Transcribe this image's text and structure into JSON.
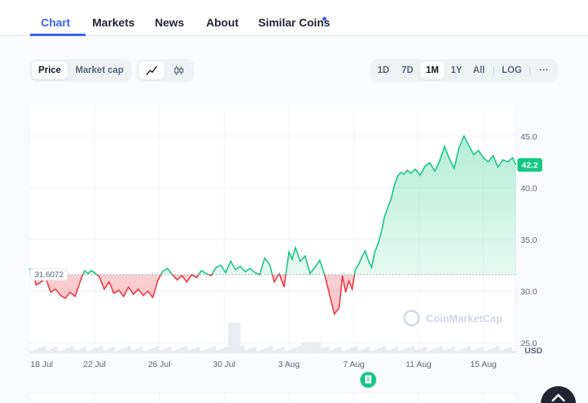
{
  "tabs": [
    {
      "label": "Chart"
    },
    {
      "label": "Markets"
    },
    {
      "label": "News"
    },
    {
      "label": "About"
    },
    {
      "label": "Similar Coins"
    }
  ],
  "view_toggle": {
    "price": "Price",
    "market_cap": "Market cap"
  },
  "chart_style": {
    "line_icon": "line-chart-icon",
    "candle_icon": "candlestick-icon"
  },
  "ranges": [
    "1D",
    "7D",
    "1M",
    "1Y",
    "All"
  ],
  "selected_range": "1M",
  "log_label": "LOG",
  "more_label": "···",
  "watermark": "CoinMarketCap",
  "colors": {
    "accent": "#3861fb",
    "up": "#16c784",
    "down": "#ea3943"
  },
  "chart_data": {
    "type": "line",
    "baseline": 31.6072,
    "baseline_label": "31.6072",
    "current_label": "42.2",
    "currency_label": "USD",
    "ylim": [
      24,
      48
    ],
    "y_ticks": [
      "45.0",
      "40.0",
      "35.0",
      "30.0",
      "25.0"
    ],
    "y_tick_values": [
      45,
      40,
      35,
      30,
      25
    ],
    "x_ticks": [
      "18 Jul",
      "22 Jul",
      "26 Jul",
      "30 Jul",
      "3 Aug",
      "7 Aug",
      "11 Aug",
      "15 Aug"
    ],
    "x_tick_days": [
      0,
      4,
      8,
      12,
      16,
      20,
      24,
      28
    ],
    "x_range_days": [
      0,
      30
    ],
    "series": [
      {
        "x": [
          0,
          0.2,
          0.4,
          0.7,
          1.0,
          1.3,
          1.6,
          1.9,
          2.2,
          2.5,
          2.8,
          3.0,
          3.2,
          3.4,
          3.6,
          3.8,
          4.0,
          4.3,
          4.6,
          4.9,
          5.2,
          5.5,
          5.8,
          6.1,
          6.4,
          6.7,
          7.0,
          7.3,
          7.6,
          7.9,
          8.2,
          8.5,
          8.8,
          9.1,
          9.4,
          9.7,
          10.0,
          10.3,
          10.6,
          10.9,
          11.2,
          11.5,
          11.8,
          12.1,
          12.4,
          12.7,
          13.0,
          13.3,
          13.6,
          13.9,
          14.2,
          14.5,
          14.8,
          15.1,
          15.4,
          15.7,
          16.0,
          16.2,
          16.4,
          16.7,
          17.0,
          17.3,
          17.6,
          17.9,
          18.2,
          18.5,
          18.8,
          19.1,
          19.3,
          19.5,
          19.7,
          19.9,
          20.1,
          20.3,
          20.5,
          20.7,
          20.9,
          21.1,
          21.3,
          21.5,
          21.7,
          21.9,
          22.1,
          22.3,
          22.5,
          22.7,
          22.9,
          23.1,
          23.3,
          23.5,
          23.8,
          24.1,
          24.4,
          24.7,
          25.0,
          25.3,
          25.6,
          25.9,
          26.2,
          26.5,
          26.8,
          27.1,
          27.4,
          27.7,
          28.0,
          28.3,
          28.6,
          28.9,
          29.2,
          29.5,
          29.8,
          30.0
        ],
        "values": [
          32.2,
          31.8,
          30.6,
          30.9,
          31.2,
          29.9,
          30.2,
          29.6,
          29.3,
          29.9,
          29.5,
          30.4,
          31.3,
          32.0,
          31.7,
          32.0,
          31.8,
          31.4,
          30.2,
          30.9,
          29.8,
          30.1,
          29.5,
          30.4,
          29.7,
          30.2,
          29.6,
          30.0,
          29.4,
          31.0,
          31.9,
          32.2,
          31.6,
          31.1,
          31.5,
          30.9,
          31.6,
          31.3,
          32.0,
          31.7,
          31.5,
          32.3,
          32.5,
          31.8,
          32.9,
          32.1,
          32.4,
          31.9,
          32.2,
          31.8,
          31.6,
          33.2,
          32.6,
          30.9,
          31.7,
          30.4,
          33.8,
          33.1,
          34.2,
          32.9,
          33.4,
          31.7,
          32.3,
          33.0,
          31.6,
          29.7,
          27.8,
          28.4,
          31.5,
          29.9,
          31.0,
          30.2,
          32.1,
          32.6,
          33.3,
          33.9,
          33.0,
          32.3,
          33.8,
          34.6,
          35.7,
          37.2,
          38.1,
          38.9,
          40.2,
          41.1,
          41.5,
          41.3,
          41.7,
          41.4,
          41.8,
          41.2,
          42.1,
          42.4,
          41.6,
          42.6,
          44.0,
          42.8,
          41.9,
          43.9,
          45.0,
          44.1,
          43.2,
          43.6,
          42.9,
          42.5,
          43.1,
          42.0,
          42.7,
          42.5,
          42.9,
          42.2
        ]
      }
    ]
  }
}
